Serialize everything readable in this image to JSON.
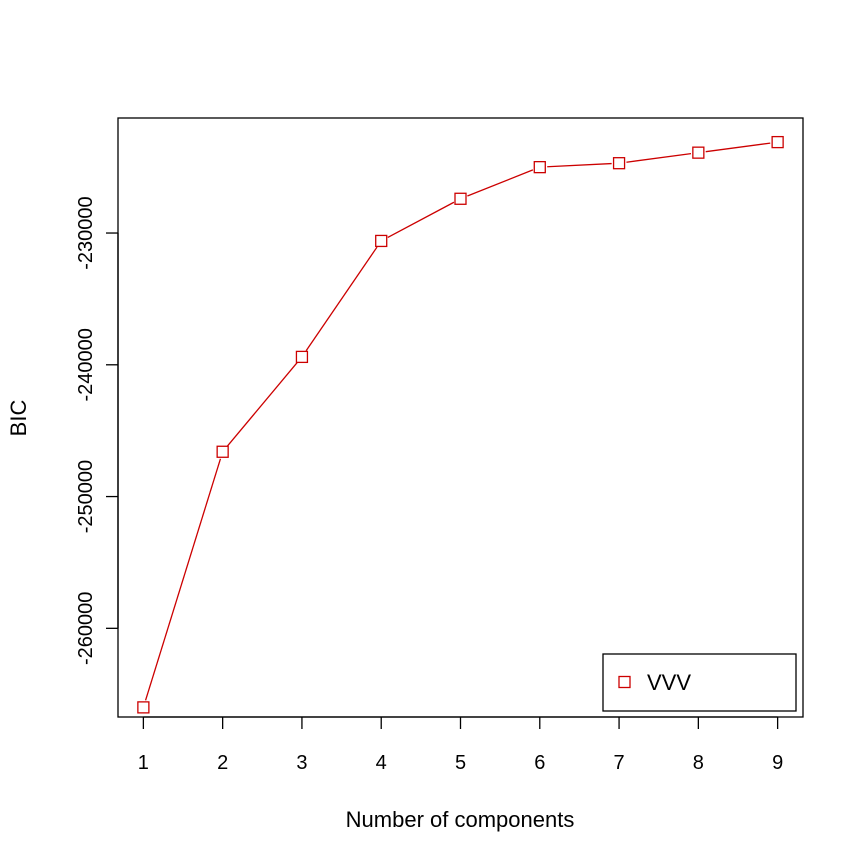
{
  "chart_data": {
    "type": "line",
    "title": "",
    "xlabel": "Number of components",
    "ylabel": "BIC",
    "x": [
      1,
      2,
      3,
      4,
      5,
      6,
      7,
      8,
      9
    ],
    "series": [
      {
        "name": "VVV",
        "color": "#cc0000",
        "marker": "open-square",
        "values": [
          -266000,
          -246600,
          -239400,
          -230600,
          -227400,
          -225000,
          -224700,
          -223900,
          -223100
        ]
      }
    ],
    "xticks": [
      1,
      2,
      3,
      4,
      5,
      6,
      7,
      8,
      9
    ],
    "xtick_labels": [
      "1",
      "2",
      "3",
      "4",
      "5",
      "6",
      "7",
      "8",
      "9"
    ],
    "yticks": [
      -260000,
      -250000,
      -240000,
      -230000
    ],
    "ytick_labels": [
      "-260000",
      "-250000",
      "-240000",
      "-230000"
    ],
    "xlim": [
      0.68,
      9.32
    ],
    "ylim": [
      -266730,
      -221270
    ],
    "grid": false,
    "legend_position": "bottom-right"
  }
}
